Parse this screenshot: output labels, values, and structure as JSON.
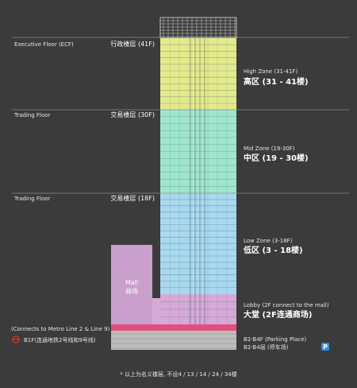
{
  "floors": [
    {
      "en": "Executive Floor (ECF)",
      "cn": "行政楼层 (41F)"
    },
    {
      "en": "Trading Floor",
      "cn": "交易楼层 (30F)"
    },
    {
      "en": "Trading Floor",
      "cn": "交易楼层 (18F)"
    }
  ],
  "zones": [
    {
      "en": "High Zone (31-41F)",
      "cn": "高区 (31 - 41楼)"
    },
    {
      "en": "Mid Zone (19-30F)",
      "cn": "中区 (19 - 30楼)"
    },
    {
      "en": "Low Zone (3-18F)",
      "cn": "低区 (3 - 18楼)"
    },
    {
      "en": "Lobby (2F connect to the mall)",
      "cn": "大堂 (2F连通商场)"
    },
    {
      "en": "B2-B4F (Parking Place)",
      "cn": "B2-B4层 (停车场)"
    }
  ],
  "parking_icon": "P",
  "mall": {
    "en": "Mall",
    "cn": "商场"
  },
  "metro": {
    "en": "(Connects to Metro Line 2 & Line 9)",
    "cn": "B1F(连通地铁2号线和9号线)"
  },
  "footnote": "* 以上为名义楼层, 不设4 / 13 / 14 / 24 / 34楼"
}
